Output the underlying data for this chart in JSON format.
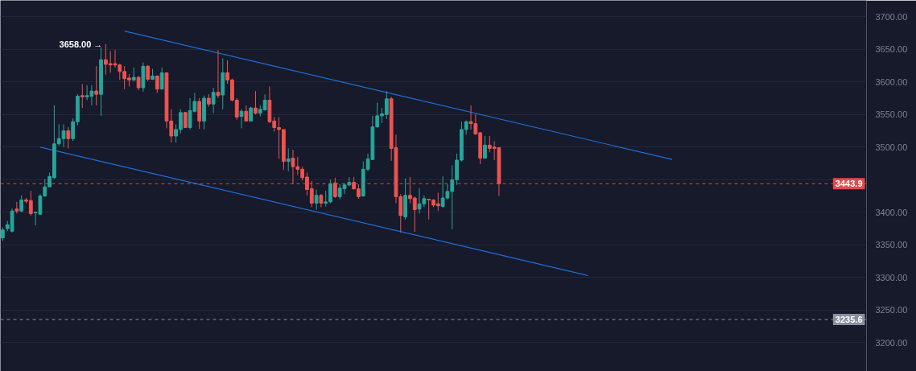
{
  "chart_data": {
    "type": "candlestick",
    "categories": [
      null,
      null,
      null,
      null,
      null,
      null,
      null,
      null,
      null,
      null,
      null,
      null,
      null,
      null,
      null,
      null,
      null,
      null,
      null,
      null,
      null,
      null,
      null,
      null,
      null,
      null,
      null,
      null,
      null,
      null,
      null,
      null,
      null,
      null,
      null,
      null,
      null,
      null,
      null,
      null,
      null,
      null,
      null,
      null,
      null,
      null,
      null,
      null,
      null,
      null,
      null,
      null,
      null,
      null,
      null,
      null,
      null,
      null,
      null,
      null,
      null,
      null,
      null,
      null,
      null,
      null,
      null,
      null,
      null,
      null,
      null,
      null,
      null,
      null,
      null,
      null,
      null,
      null,
      null,
      null,
      null,
      null,
      null,
      null,
      null,
      null,
      null,
      null,
      null,
      null,
      null,
      null,
      null,
      null,
      null,
      null,
      null,
      null,
      null,
      null,
      null,
      null,
      null,
      null,
      null,
      null,
      null,
      null,
      null,
      null,
      null,
      null,
      null,
      null,
      null,
      null,
      null,
      null,
      null,
      null,
      null,
      null,
      null,
      null,
      null,
      null,
      null,
      null,
      null,
      null,
      null,
      null,
      null,
      null,
      null,
      null,
      null,
      null,
      null,
      null,
      null,
      null,
      null,
      null,
      null,
      null,
      null,
      null,
      null,
      null,
      null,
      null,
      null,
      null,
      null,
      null,
      null,
      null,
      null,
      null,
      null,
      null,
      null,
      null,
      null,
      null,
      null,
      null,
      null,
      null,
      null,
      null,
      null,
      null,
      null,
      null,
      null,
      null,
      null,
      null,
      null,
      null,
      null,
      null,
      null
    ],
    "ohlc": [
      [
        3361,
        3377,
        3356,
        3373
      ],
      [
        3375,
        3387,
        3371,
        3381
      ],
      [
        3371,
        3406,
        3369,
        3402
      ],
      [
        3405,
        3416,
        3398,
        3402
      ],
      [
        3402,
        3426,
        3400,
        3419
      ],
      [
        3419,
        3422,
        3414,
        3417
      ],
      [
        3418,
        3433,
        3395,
        3398
      ],
      [
        3399,
        3401,
        3380,
        3400
      ],
      [
        3397,
        3428,
        3397,
        3425
      ],
      [
        3425,
        3451,
        3424,
        3439
      ],
      [
        3439,
        3461,
        3439,
        3455
      ],
      [
        3453,
        3564,
        3451,
        3505
      ],
      [
        3505,
        3535,
        3502,
        3513
      ],
      [
        3513,
        3535,
        3500,
        3525
      ],
      [
        3525,
        3531,
        3498,
        3513
      ],
      [
        3513,
        3544,
        3509,
        3539
      ],
      [
        3539,
        3581,
        3533,
        3578
      ],
      [
        3579,
        3597,
        3560,
        3577
      ],
      [
        3577,
        3595,
        3572,
        3579
      ],
      [
        3578,
        3595,
        3564,
        3586
      ],
      [
        3586,
        3624,
        3564,
        3581
      ],
      [
        3581,
        3653,
        3548,
        3634
      ],
      [
        3634,
        3658,
        3611,
        3627
      ],
      [
        3628,
        3647,
        3614,
        3626
      ],
      [
        3628,
        3649,
        3622,
        3626
      ],
      [
        3626,
        3628,
        3603,
        3616
      ],
      [
        3616,
        3624,
        3589,
        3605
      ],
      [
        3606,
        3612,
        3593,
        3603
      ],
      [
        3603,
        3622,
        3601,
        3607
      ],
      [
        3607,
        3609,
        3587,
        3591
      ],
      [
        3591,
        3630,
        3585,
        3624
      ],
      [
        3624,
        3626,
        3601,
        3604
      ],
      [
        3604,
        3620,
        3603,
        3609
      ],
      [
        3609,
        3610,
        3583,
        3589
      ],
      [
        3589,
        3622,
        3589,
        3614
      ],
      [
        3614,
        3614,
        3529,
        3540
      ],
      [
        3540,
        3558,
        3507,
        3517
      ],
      [
        3517,
        3535,
        3507,
        3527
      ],
      [
        3527,
        3558,
        3521,
        3553
      ],
      [
        3553,
        3554,
        3529,
        3530
      ],
      [
        3530,
        3575,
        3527,
        3556
      ],
      [
        3555,
        3583,
        3553,
        3570
      ],
      [
        3570,
        3575,
        3528,
        3540
      ],
      [
        3540,
        3579,
        3527,
        3575
      ],
      [
        3575,
        3581,
        3562,
        3566
      ],
      [
        3566,
        3591,
        3552,
        3584
      ],
      [
        3584,
        3649,
        3575,
        3579
      ],
      [
        3580,
        3636,
        3558,
        3614
      ],
      [
        3614,
        3633,
        3597,
        3603
      ],
      [
        3603,
        3605,
        3570,
        3572
      ],
      [
        3572,
        3575,
        3542,
        3546
      ],
      [
        3547,
        3558,
        3529,
        3555
      ],
      [
        3555,
        3564,
        3540,
        3540
      ],
      [
        3540,
        3562,
        3540,
        3560
      ],
      [
        3560,
        3586,
        3550,
        3552
      ],
      [
        3552,
        3564,
        3547,
        3558
      ],
      [
        3557,
        3581,
        3556,
        3572
      ],
      [
        3572,
        3593,
        3537,
        3539
      ],
      [
        3540,
        3546,
        3524,
        3530
      ],
      [
        3530,
        3546,
        3482,
        3527
      ],
      [
        3527,
        3527,
        3465,
        3478
      ],
      [
        3478,
        3498,
        3463,
        3482
      ],
      [
        3483,
        3496,
        3443,
        3470
      ],
      [
        3470,
        3485,
        3457,
        3466
      ],
      [
        3466,
        3470,
        3449,
        3453
      ],
      [
        3454,
        3461,
        3426,
        3435
      ],
      [
        3436,
        3448,
        3408,
        3414
      ],
      [
        3414,
        3435,
        3404,
        3426
      ],
      [
        3426,
        3428,
        3408,
        3414
      ],
      [
        3414,
        3433,
        3409,
        3416
      ],
      [
        3416,
        3450,
        3414,
        3444
      ],
      [
        3445,
        3453,
        3422,
        3424
      ],
      [
        3424,
        3443,
        3420,
        3437
      ],
      [
        3436,
        3445,
        3428,
        3442
      ],
      [
        3442,
        3454,
        3440,
        3446
      ],
      [
        3446,
        3454,
        3435,
        3436
      ],
      [
        3436,
        3443,
        3421,
        3424
      ],
      [
        3425,
        3478,
        3424,
        3466
      ],
      [
        3466,
        3490,
        3463,
        3482
      ],
      [
        3481,
        3548,
        3480,
        3531
      ],
      [
        3531,
        3568,
        3530,
        3548
      ],
      [
        3548,
        3560,
        3537,
        3551
      ],
      [
        3550,
        3586,
        3543,
        3574
      ],
      [
        3574,
        3577,
        3479,
        3498
      ],
      [
        3499,
        3519,
        3414,
        3424
      ],
      [
        3424,
        3428,
        3369,
        3395
      ],
      [
        3393,
        3452,
        3389,
        3426
      ],
      [
        3426,
        3454,
        3414,
        3421
      ],
      [
        3422,
        3424,
        3370,
        3404
      ],
      [
        3405,
        3437,
        3398,
        3413
      ],
      [
        3413,
        3426,
        3408,
        3421
      ],
      [
        3420,
        3420,
        3389,
        3419
      ],
      [
        3419,
        3420,
        3408,
        3411
      ],
      [
        3413,
        3430,
        3402,
        3410
      ],
      [
        3409,
        3455,
        3407,
        3422
      ],
      [
        3422,
        3443,
        3420,
        3432
      ],
      [
        3432,
        3472,
        3374,
        3450
      ],
      [
        3450,
        3490,
        3442,
        3480
      ],
      [
        3480,
        3539,
        3478,
        3527
      ],
      [
        3527,
        3541,
        3519,
        3539
      ],
      [
        3539,
        3564,
        3527,
        3536
      ],
      [
        3536,
        3550,
        3519,
        3520
      ],
      [
        3522,
        3523,
        3474,
        3483
      ],
      [
        3483,
        3517,
        3482,
        3503
      ],
      [
        3503,
        3517,
        3492,
        3498
      ],
      [
        3500,
        3509,
        3480,
        3498
      ],
      [
        3499,
        3499,
        3425,
        3443.9
      ],
      null,
      null,
      null,
      null,
      null,
      null,
      null,
      null,
      null,
      null,
      null,
      null,
      null,
      null,
      null,
      null,
      null,
      null,
      null,
      null,
      null,
      null,
      null,
      null,
      null,
      null,
      null,
      null,
      null,
      null,
      null,
      null,
      null,
      null,
      null,
      null,
      null,
      null,
      null,
      null,
      null,
      null,
      null,
      null,
      null,
      null,
      null,
      null,
      null,
      null,
      null,
      null,
      null,
      null,
      null,
      null,
      null,
      null,
      null,
      null,
      null,
      null,
      null,
      null,
      null,
      null,
      null,
      null,
      null,
      null,
      null,
      null,
      null,
      null,
      null,
      null,
      null,
      null
    ],
    "colors": [
      "#26a69a",
      "#26a69a",
      "#26a69a",
      "#ef5350",
      "#26a69a",
      "#ef5350",
      "#ef5350",
      "#26a69a",
      "#26a69a",
      "#26a69a",
      "#26a69a",
      "#26a69a",
      "#26a69a",
      "#26a69a",
      "#ef5350",
      "#26a69a",
      "#26a69a",
      "#ef5350",
      "#26a69a",
      "#26a69a",
      "#ef5350",
      "#26a69a",
      "#ef5350",
      "#ef5350",
      "#ef5350",
      "#ef5350",
      "#ef5350",
      "#ef5350",
      "#26a69a",
      "#ef5350",
      "#26a69a",
      "#ef5350",
      "#26a69a",
      "#ef5350",
      "#26a69a",
      "#ef5350",
      "#ef5350",
      "#26a69a",
      "#26a69a",
      "#ef5350",
      "#26a69a",
      "#26a69a",
      "#ef5350",
      "#26a69a",
      "#ef5350",
      "#26a69a",
      "#ef5350",
      "#26a69a",
      "#ef5350",
      "#ef5350",
      "#ef5350",
      "#26a69a",
      "#ef5350",
      "#26a69a",
      "#ef5350",
      "#26a69a",
      "#26a69a",
      "#ef5350",
      "#ef5350",
      "#ef5350",
      "#ef5350",
      "#26a69a",
      "#ef5350",
      "#ef5350",
      "#ef5350",
      "#ef5350",
      "#ef5350",
      "#26a69a",
      "#ef5350",
      "#26a69a",
      "#26a69a",
      "#ef5350",
      "#26a69a",
      "#26a69a",
      "#26a69a",
      "#ef5350",
      "#ef5350",
      "#26a69a",
      "#26a69a",
      "#26a69a",
      "#26a69a",
      "#26a69a",
      "#26a69a",
      "#ef5350",
      "#ef5350",
      "#ef5350",
      "#26a69a",
      "#ef5350",
      "#ef5350",
      "#26a69a",
      "#26a69a",
      "#ef5350",
      "#ef5350",
      "#ef5350",
      "#26a69a",
      "#26a69a",
      "#26a69a",
      "#26a69a",
      "#26a69a",
      "#26a69a",
      "#ef5350",
      "#ef5350",
      "#ef5350",
      "#26a69a",
      "#ef5350",
      "#ef5350",
      "#ef5350",
      null,
      null,
      null,
      null,
      null,
      null,
      null,
      null,
      null,
      null,
      null,
      null,
      null,
      null,
      null,
      null,
      null,
      null,
      null,
      null,
      null,
      null,
      null,
      null,
      null,
      null,
      null,
      null,
      null,
      null,
      null,
      null,
      null,
      null,
      null,
      null,
      null,
      null,
      null,
      null,
      null,
      null,
      null,
      null,
      null,
      null,
      null,
      null,
      null,
      null,
      null,
      null,
      null,
      null,
      null,
      null,
      null,
      null,
      null,
      null,
      null,
      null,
      null,
      null,
      null,
      null,
      null,
      null,
      null,
      null,
      null,
      null,
      null,
      null,
      null,
      null,
      null,
      null
    ],
    "series": [
      {
        "type": "line",
        "color": "#1e6fd9",
        "values": [
          null,
          null,
          null,
          null,
          null,
          null,
          null,
          null,
          null,
          null,
          null,
          null,
          null,
          null,
          null,
          null,
          null,
          null,
          null,
          null,
          null,
          null,
          null,
          null,
          null,
          null,
          3678,
          null,
          null,
          null,
          null,
          null,
          null,
          null,
          null,
          null,
          null,
          null,
          null,
          null,
          null,
          null,
          null,
          null,
          null,
          null,
          null,
          null,
          null,
          null,
          null,
          null,
          null,
          null,
          null,
          null,
          null,
          null,
          null,
          null,
          null,
          null,
          null,
          null,
          null,
          null,
          null,
          null,
          null,
          null,
          null,
          null,
          null,
          null,
          null,
          null,
          null,
          null,
          null,
          null,
          null,
          null,
          null,
          null,
          null,
          null,
          null,
          null,
          null,
          null,
          null,
          null,
          null,
          null,
          null,
          null,
          null,
          null,
          null,
          null,
          null,
          null,
          null,
          null,
          null,
          null,
          null,
          null,
          null,
          null,
          null,
          null,
          null,
          null,
          null,
          null,
          null,
          null,
          null,
          null,
          null,
          null,
          null,
          null,
          null,
          null,
          null,
          null,
          null,
          null,
          null,
          null,
          null,
          null,
          null,
          null,
          null,
          null,
          null,
          null,
          null,
          null,
          null,
          3481,
          null,
          null,
          null,
          null,
          null,
          null,
          null,
          null,
          null,
          null,
          null,
          null,
          null,
          null,
          null,
          null,
          null,
          null,
          null,
          null,
          null,
          null,
          null,
          null,
          null,
          null,
          null,
          null,
          null,
          null,
          null,
          null,
          null,
          null,
          null,
          null,
          null,
          null,
          null,
          null,
          null
        ]
      },
      {
        "type": "line",
        "color": "#1e6fd9",
        "values": [
          null,
          null,
          null,
          null,
          null,
          null,
          null,
          null,
          3500,
          null,
          null,
          null,
          null,
          null,
          null,
          null,
          null,
          null,
          null,
          null,
          null,
          null,
          null,
          null,
          null,
          null,
          null,
          null,
          null,
          null,
          null,
          null,
          null,
          null,
          null,
          null,
          null,
          null,
          null,
          null,
          null,
          null,
          null,
          null,
          null,
          null,
          null,
          null,
          null,
          null,
          null,
          null,
          null,
          null,
          null,
          null,
          null,
          null,
          null,
          null,
          null,
          null,
          null,
          null,
          null,
          null,
          null,
          null,
          null,
          null,
          null,
          null,
          null,
          null,
          null,
          null,
          null,
          null,
          null,
          null,
          null,
          null,
          null,
          null,
          null,
          null,
          null,
          null,
          null,
          null,
          null,
          null,
          null,
          null,
          null,
          null,
          null,
          null,
          null,
          null,
          null,
          null,
          null,
          null,
          null,
          null,
          null,
          null,
          null,
          null,
          null,
          null,
          null,
          null,
          null,
          null,
          null,
          null,
          null,
          null,
          null,
          null,
          null,
          null,
          null,
          3303,
          null,
          null,
          null,
          null,
          null,
          null,
          null,
          null,
          null,
          null,
          null,
          null,
          null,
          null,
          null,
          null,
          null,
          null,
          null,
          null,
          null,
          null,
          null,
          null,
          null,
          null,
          null,
          null,
          null,
          null,
          null,
          null,
          null,
          null,
          null,
          null,
          null,
          null,
          null,
          null,
          null,
          null,
          null,
          null,
          null,
          null,
          null,
          null,
          null,
          null,
          null,
          null,
          null,
          null,
          null,
          null,
          null,
          null,
          null
        ]
      }
    ],
    "ylim": [
      3156,
      3725
    ],
    "yticks": [
      {
        "value": 3200,
        "label": "3200.00"
      },
      {
        "value": 3250,
        "label": "3250.00"
      },
      {
        "value": 3300,
        "label": "3300.00"
      },
      {
        "value": 3350,
        "label": "3350.00"
      },
      {
        "value": 3400,
        "label": "3400.00"
      },
      {
        "value": 3450,
        "label": null
      },
      {
        "value": 3500,
        "label": "3500.00"
      },
      {
        "value": 3550,
        "label": "3550.00"
      },
      {
        "value": 3600,
        "label": "3600.00"
      },
      {
        "value": 3650,
        "label": "3650.00"
      },
      {
        "value": 3700,
        "label": "3700.00"
      }
    ],
    "tick_labels": "y",
    "grid": "y",
    "ref_lines": [
      {
        "axis": "y",
        "value": 3443.9,
        "label": "3443.9",
        "color": "#e04b4b",
        "line_style": "dashed"
      },
      {
        "axis": "y",
        "value": 3235.6,
        "label": "3235.6",
        "color": "#8a8f9c",
        "line_style": "dashed"
      }
    ],
    "annotations": [
      "3658.00 →"
    ]
  }
}
